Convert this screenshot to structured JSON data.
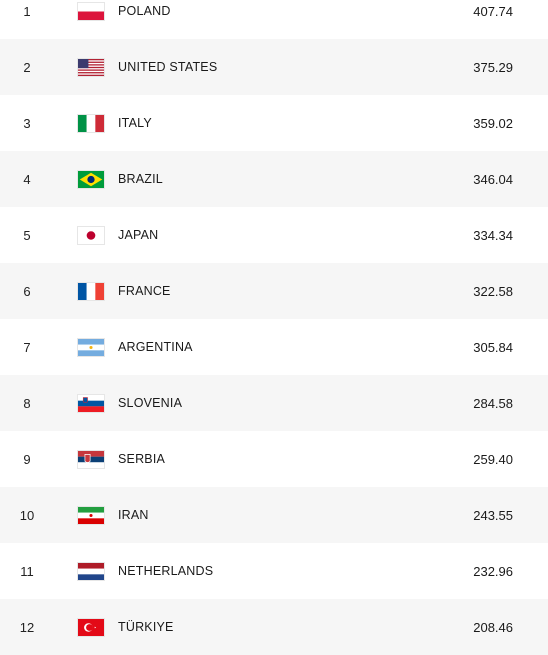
{
  "rankings": [
    {
      "rank": "1",
      "country": "POLAND",
      "points": "407.74",
      "flag": "poland-flag-icon"
    },
    {
      "rank": "2",
      "country": "UNITED STATES",
      "points": "375.29",
      "flag": "usa-flag-icon"
    },
    {
      "rank": "3",
      "country": "ITALY",
      "points": "359.02",
      "flag": "italy-flag-icon"
    },
    {
      "rank": "4",
      "country": "BRAZIL",
      "points": "346.04",
      "flag": "brazil-flag-icon"
    },
    {
      "rank": "5",
      "country": "JAPAN",
      "points": "334.34",
      "flag": "japan-flag-icon"
    },
    {
      "rank": "6",
      "country": "FRANCE",
      "points": "322.58",
      "flag": "france-flag-icon"
    },
    {
      "rank": "7",
      "country": "ARGENTINA",
      "points": "305.84",
      "flag": "argentina-flag-icon"
    },
    {
      "rank": "8",
      "country": "SLOVENIA",
      "points": "284.58",
      "flag": "slovenia-flag-icon"
    },
    {
      "rank": "9",
      "country": "SERBIA",
      "points": "259.40",
      "flag": "serbia-flag-icon"
    },
    {
      "rank": "10",
      "country": "IRAN",
      "points": "243.55",
      "flag": "iran-flag-icon"
    },
    {
      "rank": "11",
      "country": "NETHERLANDS",
      "points": "232.96",
      "flag": "netherlands-flag-icon"
    },
    {
      "rank": "12",
      "country": "TÜRKIYE",
      "points": "208.46",
      "flag": "turkiye-flag-icon"
    }
  ],
  "colors": {
    "row_alt_bg": "#f6f6f6",
    "text": "#1a1a1a"
  }
}
